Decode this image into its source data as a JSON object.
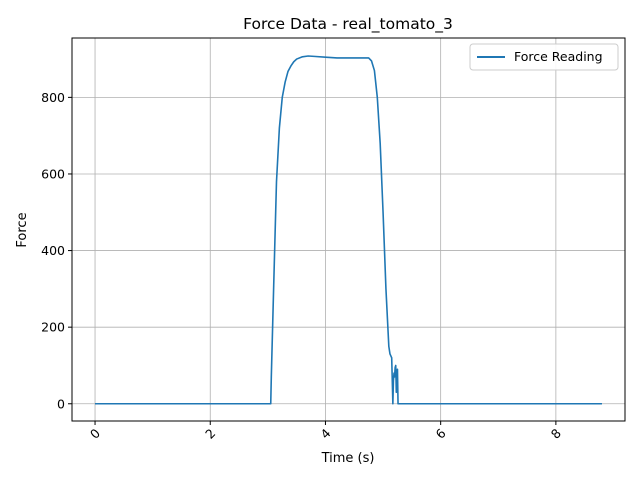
{
  "chart_data": {
    "type": "line",
    "title": "Force Data - real_tomato_3",
    "xlabel": "Time (s)",
    "ylabel": "Force",
    "xlim": [
      -0.4,
      9.2
    ],
    "ylim": [
      -45,
      955
    ],
    "xticks": [
      0,
      2,
      4,
      6,
      8
    ],
    "xtick_labels": [
      "0",
      "2",
      "4",
      "6",
      "8"
    ],
    "yticks": [
      0,
      200,
      400,
      600,
      800
    ],
    "ytick_labels": [
      "0",
      "200",
      "400",
      "600",
      "800"
    ],
    "xtick_rotation": 45,
    "grid": true,
    "legend_position": "top-right",
    "series": [
      {
        "name": "Force Reading",
        "color": "#1f77b4",
        "x": [
          0.0,
          3.05,
          3.06,
          3.1,
          3.15,
          3.2,
          3.25,
          3.3,
          3.35,
          3.4,
          3.45,
          3.5,
          3.6,
          3.7,
          3.8,
          4.0,
          4.2,
          4.4,
          4.6,
          4.75,
          4.8,
          4.85,
          4.9,
          4.95,
          5.0,
          5.05,
          5.1,
          5.12,
          5.15,
          5.17,
          5.18,
          5.19,
          5.2,
          5.21,
          5.22,
          5.23,
          5.24,
          5.25,
          5.26,
          8.8
        ],
        "y": [
          0,
          0,
          70,
          300,
          580,
          720,
          800,
          840,
          868,
          882,
          893,
          900,
          906,
          908,
          907,
          905,
          903,
          903,
          903,
          903,
          895,
          870,
          800,
          680,
          500,
          300,
          150,
          130,
          120,
          0,
          60,
          80,
          70,
          95,
          100,
          30,
          80,
          90,
          0,
          0
        ]
      }
    ]
  }
}
